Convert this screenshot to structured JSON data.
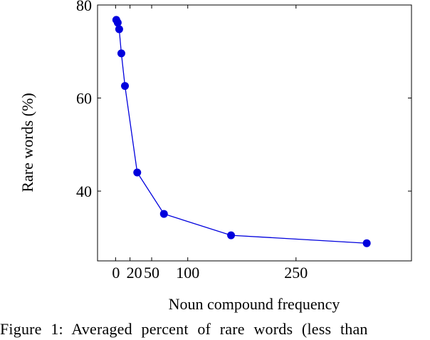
{
  "chart_data": {
    "type": "line",
    "title": "",
    "xlabel": "Noun compound frequency",
    "ylabel": "Rare words (%)",
    "xlim": [
      -25,
      410
    ],
    "ylim": [
      25,
      80
    ],
    "xticks": [
      0,
      20,
      50,
      100,
      250
    ],
    "xtick_labels": [
      "0",
      "20",
      "50",
      "100",
      "250"
    ],
    "yticks": [
      40,
      60,
      80
    ],
    "ytick_labels": [
      "40",
      "60",
      "80"
    ],
    "grid": false,
    "legend": "none",
    "color": "#0000dd",
    "x": [
      1,
      3,
      5,
      8,
      13,
      30,
      67,
      160,
      348
    ],
    "y": [
      76.8,
      76.2,
      74.8,
      69.6,
      62.6,
      44.0,
      35.1,
      30.5,
      28.8
    ]
  },
  "caption": "Figure 1: Averaged percent of rare words (less than"
}
